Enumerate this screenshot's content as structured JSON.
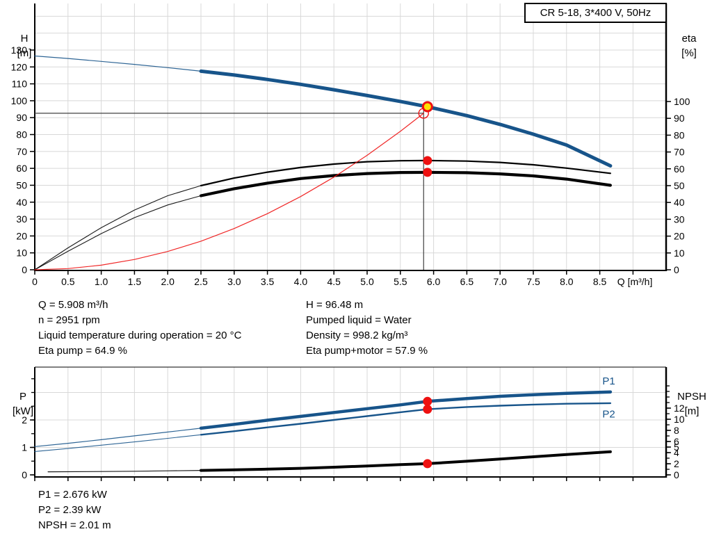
{
  "title_box": "CR 5-18, 3*400 V, 50Hz",
  "axes_corner_labels": {
    "h": "H",
    "h_unit": "[m]",
    "eta": "eta",
    "eta_unit": "[%]",
    "p": "P",
    "p_unit": "[kW]",
    "npsh": "NPSH",
    "npsh_unit": "[m]"
  },
  "duty_info": {
    "left": [
      "Q = 5.908 m³/h",
      "n = 2951 rpm",
      "Liquid temperature during operation = 20 °C",
      "Eta pump = 64.9 %"
    ],
    "right": [
      "H = 96.48 m",
      "Pumped liquid = Water",
      "Density = 998.2 kg/m³",
      "Eta pump+motor = 57.9 %"
    ]
  },
  "power_info": [
    "P1 = 2.676 kW",
    "P2 = 2.39 kW",
    "NPSH = 2.01 m"
  ],
  "colors": {
    "curve_blue": "#17548a",
    "curve_black": "#000000",
    "curve_red": "#ee1111",
    "marker_red": "#ee1111",
    "marker_yellow": "#ffe000",
    "grid": "#d8d8d8",
    "axis": "#000000",
    "ref_line": "#404040",
    "label_blue": "#17548a"
  },
  "chart_data": [
    {
      "type": "line",
      "title": "CR 5-18, 3*400 V, 50Hz",
      "x_label": "Q [m³/h]",
      "x_ticks": {
        "values": [
          0,
          0.5,
          1,
          1.5,
          2,
          2.5,
          3,
          3.5,
          4,
          4.5,
          5,
          5.5,
          6,
          6.5,
          7,
          7.5,
          8,
          8.5
        ],
        "labels": [
          "0",
          "0.5",
          "1.0",
          "1.5",
          "2.0",
          "2.5",
          "3.0",
          "3.5",
          "4.0",
          "4.5",
          "5.0",
          "5.5",
          "6.0",
          "6.5",
          "7.0",
          "7.5",
          "8.0",
          "8.5"
        ],
        "extra_unlabeled": [
          9.0
        ]
      },
      "y_left": {
        "name": "H [m]",
        "tick_values": [
          0,
          10,
          20,
          30,
          40,
          50,
          60,
          70,
          80,
          90,
          100,
          110,
          120,
          130
        ],
        "grid_step": 10,
        "grid_max": 150
      },
      "y_right": {
        "name": "eta [%]",
        "tick_values": [
          0,
          10,
          20,
          30,
          40,
          50,
          60,
          70,
          80,
          90,
          100
        ]
      },
      "series": [
        {
          "name": "head-curve",
          "axis": "left",
          "color_key": "curve_blue",
          "width_thin": 1.2,
          "width_thick": 5,
          "thin_until": 2.5,
          "points": [
            [
              0,
              126.5
            ],
            [
              0.5,
              125.0
            ],
            [
              1,
              123.3
            ],
            [
              1.5,
              121.5
            ],
            [
              2,
              119.6
            ],
            [
              2.5,
              117.5
            ],
            [
              3,
              115.2
            ],
            [
              3.5,
              112.6
            ],
            [
              4,
              109.7
            ],
            [
              4.5,
              106.5
            ],
            [
              5,
              103.1
            ],
            [
              5.5,
              99.6
            ],
            [
              5.908,
              96.48
            ],
            [
              6.5,
              91.2
            ],
            [
              7,
              86.0
            ],
            [
              7.5,
              80.2
            ],
            [
              8,
              73.8
            ],
            [
              8.66,
              61.5
            ]
          ]
        },
        {
          "name": "eta-pump-curve",
          "axis": "right",
          "color_key": "curve_black",
          "width_thin": 1.1,
          "width_thick": 2.2,
          "thin_until": 2.5,
          "points": [
            [
              0,
              0
            ],
            [
              0.5,
              13
            ],
            [
              1,
              25
            ],
            [
              1.5,
              35.5
            ],
            [
              2,
              44
            ],
            [
              2.5,
              50
            ],
            [
              3,
              54.5
            ],
            [
              3.5,
              58
            ],
            [
              4,
              60.8
            ],
            [
              4.5,
              62.8
            ],
            [
              5,
              64.2
            ],
            [
              5.5,
              64.8
            ],
            [
              5.908,
              64.9
            ],
            [
              6.5,
              64.6
            ],
            [
              7,
              63.8
            ],
            [
              7.5,
              62.4
            ],
            [
              8,
              60.4
            ],
            [
              8.66,
              57.3
            ]
          ]
        },
        {
          "name": "eta-pump-motor-curve",
          "axis": "right",
          "color_key": "curve_black",
          "width_thin": 1.1,
          "width_thick": 4.2,
          "thin_until": 2.5,
          "points": [
            [
              0,
              0
            ],
            [
              0.5,
              11
            ],
            [
              1,
              21.5
            ],
            [
              1.5,
              31
            ],
            [
              2,
              38.5
            ],
            [
              2.5,
              44
            ],
            [
              3,
              48.2
            ],
            [
              3.5,
              51.5
            ],
            [
              4,
              54.2
            ],
            [
              4.5,
              56
            ],
            [
              5,
              57.2
            ],
            [
              5.5,
              57.8
            ],
            [
              5.908,
              57.9
            ],
            [
              6.5,
              57.7
            ],
            [
              7,
              57.0
            ],
            [
              7.5,
              55.8
            ],
            [
              8,
              53.9
            ],
            [
              8.66,
              50.2
            ]
          ]
        },
        {
          "name": "system-curve",
          "axis": "left",
          "color_key": "curve_red",
          "width_thin": 1.2,
          "width_thick": 1.2,
          "thin_until": 99,
          "points": [
            [
              0,
              0
            ],
            [
              0.5,
              0.7
            ],
            [
              1,
              2.7
            ],
            [
              1.5,
              6.1
            ],
            [
              2,
              10.8
            ],
            [
              2.5,
              16.9
            ],
            [
              3,
              24.4
            ],
            [
              3.5,
              33.2
            ],
            [
              4,
              43.3
            ],
            [
              4.5,
              54.8
            ],
            [
              5,
              67.7
            ],
            [
              5.5,
              81.9
            ],
            [
              5.85,
              92.6
            ]
          ]
        }
      ],
      "ref_lines": {
        "vline": {
          "q": 5.85,
          "to_value": 97.0,
          "axis": "left"
        },
        "hline": {
          "value": 92.6,
          "axis": "left",
          "to_q": 5.85
        }
      },
      "markers": [
        {
          "name": "requested-duty-point",
          "style": "open-red",
          "q": 5.85,
          "v": 92.6,
          "axis": "left"
        },
        {
          "name": "duty-point-head",
          "style": "yellow-red",
          "q": 5.908,
          "v": 96.48,
          "axis": "left"
        },
        {
          "name": "duty-point-eta-pump",
          "style": "red-dot",
          "q": 5.908,
          "v": 64.9,
          "axis": "right"
        },
        {
          "name": "duty-point-eta-pump-motor",
          "style": "red-dot",
          "q": 5.908,
          "v": 57.9,
          "axis": "right"
        }
      ],
      "annotations": []
    },
    {
      "type": "line",
      "x_label": "",
      "x_ticks": {
        "values": [
          0,
          0.5,
          1,
          1.5,
          2,
          2.5,
          3,
          3.5,
          4,
          4.5,
          5,
          5.5,
          6,
          6.5,
          7,
          7.5,
          8,
          8.5
        ],
        "labels": [
          "",
          "",
          "",
          "",
          "",
          "",
          "",
          "",
          "",
          "",
          "",
          "",
          "",
          "",
          "",
          "",
          "",
          ""
        ],
        "extra_unlabeled": [
          9.0
        ]
      },
      "y_left": {
        "name": "P [kW]",
        "tick_values": [
          0,
          1,
          2
        ],
        "minor_step": 0.5,
        "minor_max": 3.5,
        "grid_step": 1,
        "grid_max": 3
      },
      "y_right": {
        "name": "NPSH [m]",
        "tick_values": [
          0,
          2,
          4,
          5,
          6,
          8,
          10,
          12
        ],
        "minor_step": 1,
        "minor_max": 16
      },
      "series": [
        {
          "name": "p1-curve",
          "axis": "left",
          "color_key": "curve_blue",
          "width_thin": 1.2,
          "width_thick": 4.5,
          "thin_until": 2.5,
          "points": [
            [
              0,
              1.03
            ],
            [
              0.5,
              1.15
            ],
            [
              1,
              1.28
            ],
            [
              1.5,
              1.42
            ],
            [
              2,
              1.56
            ],
            [
              2.5,
              1.7
            ],
            [
              3,
              1.84
            ],
            [
              3.5,
              1.99
            ],
            [
              4,
              2.13
            ],
            [
              4.5,
              2.27
            ],
            [
              5,
              2.41
            ],
            [
              5.5,
              2.55
            ],
            [
              5.908,
              2.676
            ],
            [
              6.5,
              2.78
            ],
            [
              7,
              2.86
            ],
            [
              7.5,
              2.92
            ],
            [
              8,
              2.97
            ],
            [
              8.66,
              3.02
            ]
          ]
        },
        {
          "name": "p2-curve",
          "axis": "left",
          "color_key": "curve_blue",
          "width_thin": 1.1,
          "width_thick": 2.4,
          "thin_until": 2.5,
          "points": [
            [
              0,
              0.85
            ],
            [
              0.5,
              0.96
            ],
            [
              1,
              1.08
            ],
            [
              1.5,
              1.2
            ],
            [
              2,
              1.33
            ],
            [
              2.5,
              1.46
            ],
            [
              3,
              1.59
            ],
            [
              3.5,
              1.73
            ],
            [
              4,
              1.86
            ],
            [
              4.5,
              2.0
            ],
            [
              5,
              2.14
            ],
            [
              5.5,
              2.28
            ],
            [
              5.908,
              2.39
            ],
            [
              6.5,
              2.47
            ],
            [
              7,
              2.52
            ],
            [
              7.5,
              2.56
            ],
            [
              8,
              2.59
            ],
            [
              8.66,
              2.61
            ]
          ]
        },
        {
          "name": "npsh-curve",
          "axis": "right",
          "color_key": "curve_black",
          "width_thin": 1.2,
          "width_thick": 4,
          "thin_until": 2.5,
          "points": [
            [
              0.2,
              0.55
            ],
            [
              1,
              0.6
            ],
            [
              1.5,
              0.65
            ],
            [
              2,
              0.72
            ],
            [
              2.5,
              0.8
            ],
            [
              3,
              0.9
            ],
            [
              3.5,
              1.02
            ],
            [
              4,
              1.18
            ],
            [
              4.5,
              1.38
            ],
            [
              5,
              1.6
            ],
            [
              5.5,
              1.84
            ],
            [
              5.908,
              2.01
            ],
            [
              6.5,
              2.45
            ],
            [
              7,
              2.85
            ],
            [
              7.5,
              3.25
            ],
            [
              8,
              3.65
            ],
            [
              8.66,
              4.15
            ]
          ]
        }
      ],
      "ref_lines": null,
      "markers": [
        {
          "name": "duty-point-p1",
          "style": "red-dot",
          "q": 5.908,
          "v": 2.676,
          "axis": "left"
        },
        {
          "name": "duty-point-p2",
          "style": "red-dot",
          "q": 5.908,
          "v": 2.39,
          "axis": "left"
        },
        {
          "name": "duty-point-npsh",
          "style": "red-dot",
          "q": 5.908,
          "v": 2.01,
          "axis": "right"
        }
      ],
      "annotations": [
        {
          "label": "P1",
          "q": 8.54,
          "v": 3.42,
          "axis": "left",
          "color_key": "label_blue"
        },
        {
          "label": "P2",
          "q": 8.54,
          "v": 2.22,
          "axis": "left",
          "color_key": "label_blue"
        }
      ]
    }
  ]
}
